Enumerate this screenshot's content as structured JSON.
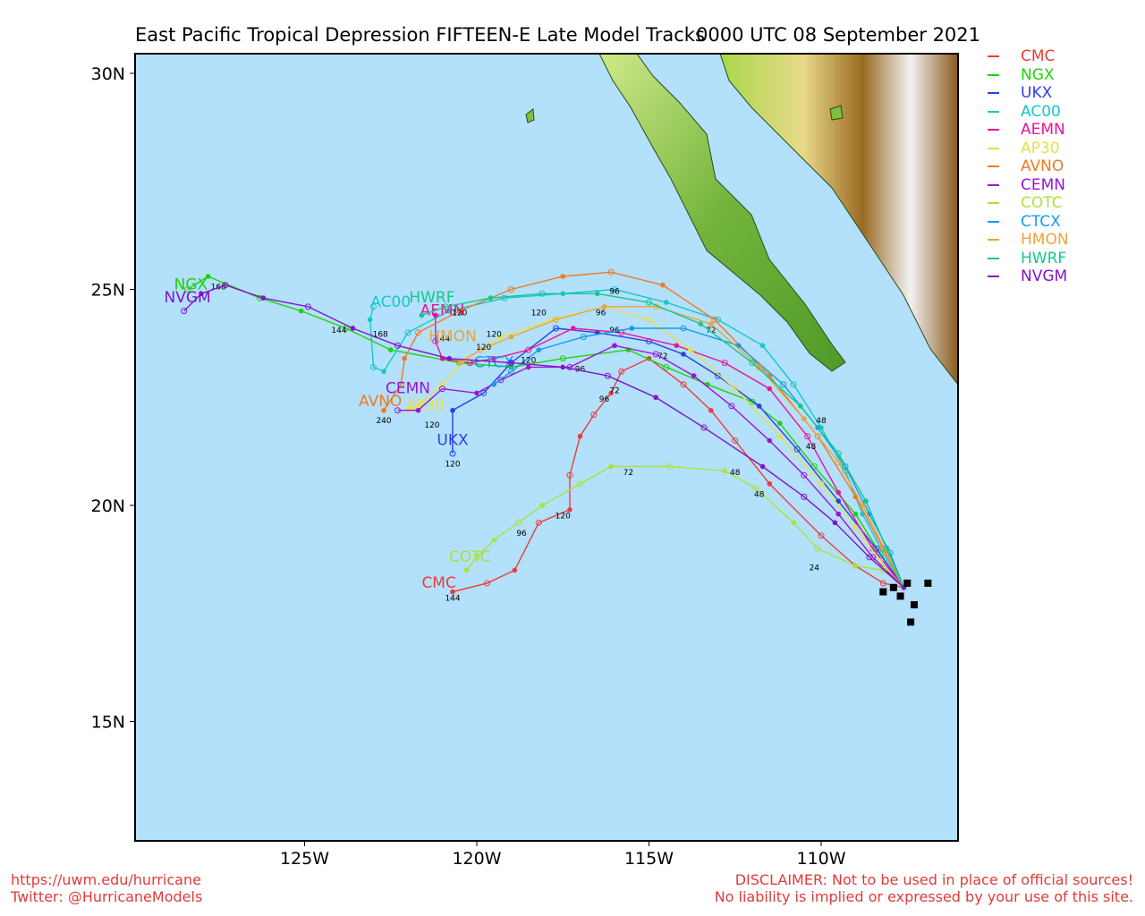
{
  "title": {
    "main": "East Pacific Tropical Depression FIFTEEN-E Late Model Tracks",
    "time": "0000 UTC 08 September 2021"
  },
  "axes": {
    "lat_ticks": [
      "30N",
      "25N",
      "20N",
      "15N"
    ],
    "lon_ticks": [
      "125W",
      "120W",
      "115W",
      "110W"
    ]
  },
  "colors": {
    "ocean": "#b3e0fb",
    "land_low": "#7fbf3f",
    "land_high": "#8a5a1a"
  },
  "legend": [
    {
      "name": "CMC",
      "color": "#ee3b3b"
    },
    {
      "name": "NGX",
      "color": "#1ed20a"
    },
    {
      "name": "UKX",
      "color": "#2c3fe6"
    },
    {
      "name": "AC00",
      "color": "#14c8c8"
    },
    {
      "name": "AEMN",
      "color": "#ea1497"
    },
    {
      "name": "AP30",
      "color": "#e6e04a"
    },
    {
      "name": "AVNO",
      "color": "#f07a22"
    },
    {
      "name": "CEMN",
      "color": "#9b14d6"
    },
    {
      "name": "COTC",
      "color": "#a9e33a"
    },
    {
      "name": "CTCX",
      "color": "#129ceb"
    },
    {
      "name": "HMON",
      "color": "#eaa53b"
    },
    {
      "name": "HWRF",
      "color": "#14c88a"
    },
    {
      "name": "NVGM",
      "color": "#8214ca"
    }
  ],
  "tracks": [
    {
      "model": "CMC",
      "pts": [
        [
          -107.6,
          18.1
        ],
        [
          -108.2,
          18.2
        ],
        [
          -109.0,
          18.6
        ],
        [
          -110.0,
          19.3
        ],
        [
          -111.5,
          20.5
        ],
        [
          -112.5,
          21.5
        ],
        [
          -113.2,
          22.2
        ],
        [
          -114.0,
          22.8
        ],
        [
          -115.0,
          23.4
        ],
        [
          -115.8,
          23.1
        ],
        [
          -116.1,
          22.6
        ],
        [
          -116.6,
          22.1
        ],
        [
          -117.0,
          21.6
        ],
        [
          -117.3,
          20.7
        ],
        [
          -117.3,
          19.9
        ],
        [
          -118.2,
          19.6
        ],
        [
          -118.9,
          18.5
        ],
        [
          -119.7,
          18.2
        ],
        [
          -120.7,
          18.0
        ]
      ],
      "labels": [
        {
          "t": "120",
          "lon": -117.5,
          "lat": 19.7
        },
        {
          "t": "96",
          "lon": -116.3,
          "lat": 22.4
        },
        {
          "t": "72",
          "lon": -116.0,
          "lat": 22.6
        },
        {
          "t": "144",
          "lon": -120.7,
          "lat": 17.8
        }
      ],
      "name_lon": -121.1,
      "name_lat": 18.1
    },
    {
      "model": "NGX",
      "pts": [
        [
          -107.6,
          18.1
        ],
        [
          -108.3,
          18.9
        ],
        [
          -109.0,
          19.8
        ],
        [
          -110.2,
          20.9
        ],
        [
          -111.2,
          21.9
        ],
        [
          -112.0,
          22.4
        ],
        [
          -113.3,
          22.8
        ],
        [
          -114.5,
          23.2
        ],
        [
          -115.6,
          23.6
        ],
        [
          -117.5,
          23.4
        ],
        [
          -119.0,
          23.2
        ],
        [
          -120.5,
          23.3
        ],
        [
          -122.5,
          23.6
        ],
        [
          -123.8,
          24.1
        ],
        [
          -125.1,
          24.5
        ],
        [
          -126.3,
          24.8
        ],
        [
          -127.8,
          25.3
        ],
        [
          -128.4,
          25.0
        ]
      ],
      "labels": [
        {
          "t": "168",
          "lon": -127.5,
          "lat": 25.0
        }
      ],
      "name_lon": -128.3,
      "name_lat": 25.0
    },
    {
      "model": "UKX",
      "pts": [
        [
          -107.6,
          18.1
        ],
        [
          -108.4,
          19.0
        ],
        [
          -109.5,
          20.1
        ],
        [
          -110.7,
          21.3
        ],
        [
          -111.8,
          22.3
        ],
        [
          -113.0,
          23.0
        ],
        [
          -114.0,
          23.5
        ],
        [
          -115.0,
          23.8
        ],
        [
          -116.5,
          24.0
        ],
        [
          -117.7,
          24.1
        ],
        [
          -119.0,
          23.3
        ],
        [
          -119.8,
          22.6
        ],
        [
          -120.7,
          22.2
        ],
        [
          -120.7,
          21.2
        ]
      ],
      "labels": [
        {
          "t": "72",
          "lon": -114.6,
          "lat": 23.4
        },
        {
          "t": "120",
          "lon": -120.7,
          "lat": 20.9
        }
      ],
      "name_lon": -120.7,
      "name_lat": 21.4
    },
    {
      "model": "AC00",
      "pts": [
        [
          -107.6,
          18.1
        ],
        [
          -108.2,
          18.9
        ],
        [
          -108.8,
          19.8
        ],
        [
          -109.3,
          20.8
        ],
        [
          -110.0,
          21.8
        ],
        [
          -110.8,
          22.8
        ],
        [
          -111.7,
          23.7
        ],
        [
          -113.0,
          24.3
        ],
        [
          -114.5,
          24.7
        ],
        [
          -116.0,
          25.0
        ],
        [
          -117.5,
          24.9
        ],
        [
          -119.2,
          24.8
        ],
        [
          -120.8,
          24.5
        ],
        [
          -122.0,
          24.0
        ],
        [
          -122.7,
          23.1
        ],
        [
          -123.0,
          23.2
        ],
        [
          -123.1,
          24.3
        ],
        [
          -123.0,
          24.6
        ]
      ],
      "labels": [
        {
          "t": "72",
          "lon": -113.2,
          "lat": 24.0
        },
        {
          "t": "120",
          "lon": -118.2,
          "lat": 24.4
        }
      ],
      "name_lon": -122.5,
      "name_lat": 24.6
    },
    {
      "model": "AEMN",
      "pts": [
        [
          -107.6,
          18.1
        ],
        [
          -108.5,
          19.0
        ],
        [
          -109.5,
          20.3
        ],
        [
          -110.4,
          21.6
        ],
        [
          -111.5,
          22.7
        ],
        [
          -112.8,
          23.3
        ],
        [
          -114.2,
          23.7
        ],
        [
          -115.8,
          24.0
        ],
        [
          -117.2,
          24.1
        ],
        [
          -118.5,
          23.6
        ],
        [
          -119.5,
          23.4
        ],
        [
          -120.2,
          23.3
        ],
        [
          -121.0,
          23.4
        ],
        [
          -121.2,
          23.8
        ],
        [
          -121.2,
          24.4
        ]
      ],
      "labels": [
        {
          "t": "48",
          "lon": -110.3,
          "lat": 21.3
        },
        {
          "t": "96",
          "lon": -116.0,
          "lat": 24.0
        },
        {
          "t": "144",
          "lon": -121.0,
          "lat": 23.8
        }
      ],
      "name_lon": -121.0,
      "name_lat": 24.4
    },
    {
      "model": "AP30",
      "pts": [
        [
          -107.6,
          18.1
        ],
        [
          -108.3,
          18.7
        ],
        [
          -109.0,
          19.5
        ],
        [
          -110.0,
          20.5
        ],
        [
          -111.2,
          21.6
        ],
        [
          -112.5,
          22.7
        ],
        [
          -113.8,
          23.6
        ],
        [
          -115.0,
          24.3
        ],
        [
          -116.3,
          24.6
        ],
        [
          -117.8,
          24.3
        ],
        [
          -119.3,
          23.9
        ],
        [
          -120.3,
          23.4
        ],
        [
          -121.0,
          22.8
        ],
        [
          -121.7,
          22.3
        ],
        [
          -122.0,
          22.2
        ]
      ],
      "labels": [
        {
          "t": "96",
          "lon": -116.4,
          "lat": 24.4
        },
        {
          "t": "120",
          "lon": -119.5,
          "lat": 23.9
        }
      ],
      "name_lon": -121.5,
      "name_lat": 22.2
    },
    {
      "model": "AVNO",
      "pts": [
        [
          -107.6,
          18.1
        ],
        [
          -108.2,
          19.0
        ],
        [
          -109.0,
          20.2
        ],
        [
          -110.1,
          21.6
        ],
        [
          -111.5,
          23.0
        ],
        [
          -113.1,
          24.3
        ],
        [
          -114.6,
          25.1
        ],
        [
          -116.1,
          25.4
        ],
        [
          -117.5,
          25.3
        ],
        [
          -119.0,
          25.0
        ],
        [
          -120.5,
          24.5
        ],
        [
          -121.7,
          24.0
        ],
        [
          -122.1,
          23.4
        ],
        [
          -122.2,
          22.8
        ],
        [
          -122.7,
          22.2
        ]
      ],
      "labels": [
        {
          "t": "240",
          "lon": -122.7,
          "lat": 21.9
        }
      ],
      "name_lon": -122.8,
      "name_lat": 22.3
    },
    {
      "model": "CEMN",
      "pts": [
        [
          -107.6,
          18.1
        ],
        [
          -108.5,
          18.8
        ],
        [
          -109.5,
          19.8
        ],
        [
          -110.5,
          20.7
        ],
        [
          -111.5,
          21.5
        ],
        [
          -112.6,
          22.3
        ],
        [
          -113.7,
          23.0
        ],
        [
          -114.8,
          23.5
        ],
        [
          -116.0,
          23.7
        ],
        [
          -117.3,
          23.2
        ],
        [
          -118.5,
          23.2
        ],
        [
          -119.3,
          22.9
        ],
        [
          -120.0,
          22.6
        ],
        [
          -121.0,
          22.7
        ],
        [
          -121.7,
          22.2
        ],
        [
          -122.3,
          22.2
        ]
      ],
      "labels": [
        {
          "t": "96",
          "lon": -117.0,
          "lat": 23.1
        },
        {
          "t": "120",
          "lon": -121.3,
          "lat": 21.8
        }
      ],
      "name_lon": -122.0,
      "name_lat": 22.6
    },
    {
      "model": "COTC",
      "pts": [
        [
          -107.6,
          18.1
        ],
        [
          -108.2,
          18.5
        ],
        [
          -109.0,
          18.6
        ],
        [
          -110.1,
          19.0
        ],
        [
          -110.8,
          19.6
        ],
        [
          -111.9,
          20.4
        ],
        [
          -112.8,
          20.8
        ],
        [
          -114.4,
          20.9
        ],
        [
          -116.1,
          20.9
        ],
        [
          -117.0,
          20.5
        ],
        [
          -118.1,
          20.0
        ],
        [
          -118.8,
          19.6
        ],
        [
          -119.5,
          19.2
        ],
        [
          -120.0,
          18.8
        ],
        [
          -120.3,
          18.5
        ]
      ],
      "labels": [
        {
          "t": "24",
          "lon": -110.2,
          "lat": 18.5
        },
        {
          "t": "48",
          "lon": -111.8,
          "lat": 20.2
        },
        {
          "t": "72",
          "lon": -115.6,
          "lat": 20.7
        },
        {
          "t": "96",
          "lon": -118.7,
          "lat": 19.3
        }
      ],
      "name_lon": -120.2,
      "name_lat": 18.7
    },
    {
      "model": "CTCX",
      "pts": [
        [
          -107.6,
          18.1
        ],
        [
          -108.0,
          18.9
        ],
        [
          -108.6,
          19.8
        ],
        [
          -109.3,
          20.9
        ],
        [
          -110.1,
          21.8
        ],
        [
          -111.1,
          22.8
        ],
        [
          -112.4,
          23.7
        ],
        [
          -114.0,
          24.1
        ],
        [
          -115.5,
          24.1
        ],
        [
          -116.9,
          23.9
        ],
        [
          -118.2,
          23.6
        ],
        [
          -119.0,
          23.1
        ],
        [
          -119.5,
          22.8
        ]
      ],
      "labels": [
        {
          "t": "120",
          "lon": -118.5,
          "lat": 23.3
        }
      ],
      "name_lon": -119.5,
      "name_lat": 23.2
    },
    {
      "model": "HMON",
      "pts": [
        [
          -107.6,
          18.1
        ],
        [
          -108.1,
          18.9
        ],
        [
          -108.8,
          20.0
        ],
        [
          -109.5,
          21.0
        ],
        [
          -110.5,
          22.0
        ],
        [
          -111.8,
          23.2
        ],
        [
          -113.2,
          24.2
        ],
        [
          -114.8,
          24.6
        ],
        [
          -116.3,
          24.6
        ],
        [
          -117.7,
          24.3
        ],
        [
          -119.0,
          23.9
        ],
        [
          -119.9,
          23.6
        ],
        [
          -120.5,
          23.3
        ]
      ],
      "labels": [
        {
          "t": "120",
          "lon": -119.8,
          "lat": 23.6
        }
      ],
      "name_lon": -120.7,
      "name_lat": 23.8
    },
    {
      "model": "HWRF",
      "pts": [
        [
          -107.6,
          18.1
        ],
        [
          -108.1,
          19.0
        ],
        [
          -108.7,
          20.1
        ],
        [
          -109.5,
          21.2
        ],
        [
          -110.6,
          22.3
        ],
        [
          -112.0,
          23.3
        ],
        [
          -113.5,
          24.2
        ],
        [
          -115.0,
          24.7
        ],
        [
          -116.5,
          24.9
        ],
        [
          -118.1,
          24.9
        ],
        [
          -119.6,
          24.8
        ],
        [
          -120.9,
          24.6
        ],
        [
          -121.6,
          24.4
        ]
      ],
      "labels": [
        {
          "t": "96",
          "lon": -116.0,
          "lat": 24.9
        },
        {
          "t": "120",
          "lon": -120.5,
          "lat": 24.4
        },
        {
          "t": "48",
          "lon": -110.0,
          "lat": 21.9
        }
      ],
      "name_lon": -121.3,
      "name_lat": 24.7
    },
    {
      "model": "NVGM",
      "pts": [
        [
          -107.6,
          18.1
        ],
        [
          -108.6,
          18.8
        ],
        [
          -109.6,
          19.6
        ],
        [
          -110.5,
          20.2
        ],
        [
          -111.7,
          20.9
        ],
        [
          -113.4,
          21.8
        ],
        [
          -114.8,
          22.5
        ],
        [
          -116.2,
          23.0
        ],
        [
          -117.5,
          23.2
        ],
        [
          -119.0,
          23.3
        ],
        [
          -120.8,
          23.4
        ],
        [
          -122.3,
          23.7
        ],
        [
          -123.6,
          24.1
        ],
        [
          -124.9,
          24.6
        ],
        [
          -126.2,
          24.8
        ],
        [
          -127.3,
          25.1
        ],
        [
          -128.0,
          24.9
        ],
        [
          -128.5,
          24.5
        ]
      ],
      "labels": [
        {
          "t": "48",
          "lon": -112.5,
          "lat": 20.7
        },
        {
          "t": "144",
          "lon": -124.0,
          "lat": 24.0
        },
        {
          "t": "168",
          "lon": -122.8,
          "lat": 23.9
        }
      ],
      "name_lon": -128.4,
      "name_lat": 24.7
    }
  ],
  "footer": {
    "url": "https://uwm.edu/hurricane",
    "twitter": "Twitter: @HurricaneModels",
    "disclaimer1": "DISCLAIMER: Not to be used in place of official sources!",
    "disclaimer2": "No liability is implied or expressed by your use of this site."
  }
}
